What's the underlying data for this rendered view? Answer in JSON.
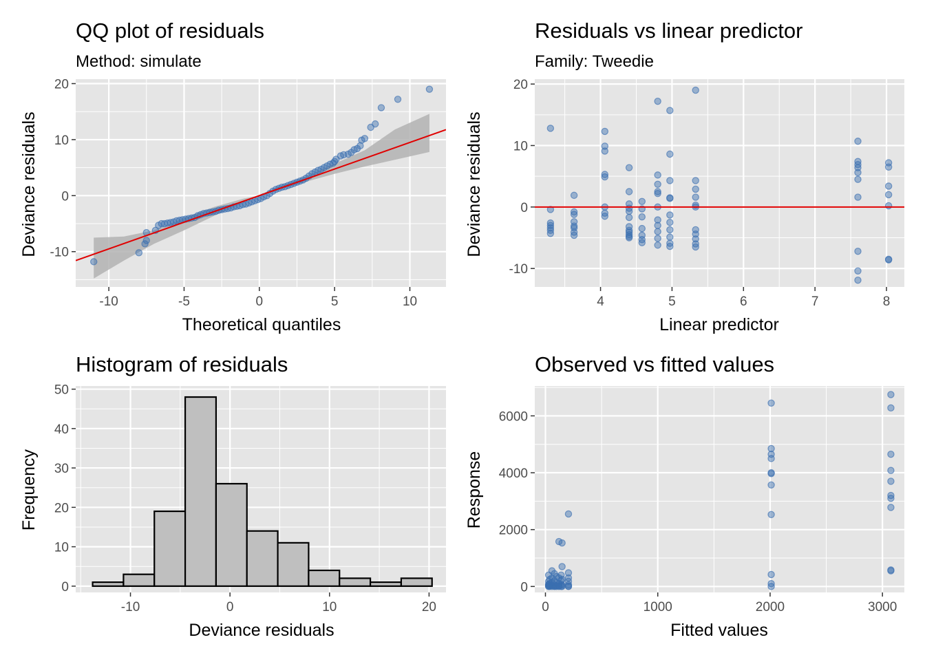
{
  "panels": {
    "qq": {
      "title": "QQ plot of residuals",
      "subtitle": "Method: simulate",
      "xlabel": "Theoretical quantiles",
      "ylabel": "Deviance residuals"
    },
    "rvl": {
      "title": "Residuals vs linear predictor",
      "subtitle": "Family: Tweedie",
      "xlabel": "Linear predictor",
      "ylabel": "Deviance residuals"
    },
    "hist": {
      "title": "Histogram of residuals",
      "xlabel": "Deviance residuals",
      "ylabel": "Frequency"
    },
    "ovf": {
      "title": "Observed vs fitted values",
      "xlabel": "Fitted values",
      "ylabel": "Response"
    }
  },
  "colors": {
    "panel_background": "#e5e5e5",
    "grid": "#ffffff",
    "point": "#3a6fb0",
    "reference_line": "#e00000",
    "ribbon": "#b3b3b3",
    "bar_fill": "#bfbfbf",
    "bar_outline": "#000000"
  },
  "chart_data": [
    {
      "id": "qq",
      "type": "scatter",
      "title": "QQ plot of residuals",
      "subtitle": "Method: simulate",
      "xlabel": "Theoretical quantiles",
      "ylabel": "Deviance residuals",
      "xlim": [
        -12.2,
        12.4
      ],
      "ylim": [
        -16.3,
        20.8
      ],
      "xticks": [
        -10,
        -5,
        0,
        5,
        10
      ],
      "xtick_labels": [
        "-10",
        "-5",
        "0",
        "5",
        "10"
      ],
      "yticks": [
        -10,
        0,
        10,
        20
      ],
      "ytick_labels": [
        "-10",
        "0",
        "10",
        "20"
      ],
      "grid": true,
      "reference_line": {
        "intercept": 0.0,
        "slope": 0.95
      },
      "band_x": [
        -11.0,
        -9.0,
        -7.0,
        -5.0,
        -3.0,
        -1.0,
        0.0,
        1.0,
        3.0,
        5.0,
        7.0,
        9.0,
        11.3
      ],
      "band_lower": [
        -14.8,
        -11.6,
        -8.6,
        -6.2,
        -3.6,
        -1.2,
        0.0,
        0.9,
        2.4,
        3.9,
        5.2,
        6.4,
        7.8
      ],
      "band_upper": [
        -7.5,
        -7.3,
        -6.2,
        -4.0,
        -2.0,
        -0.5,
        0.0,
        1.3,
        3.3,
        5.7,
        8.1,
        11.8,
        14.6
      ],
      "points": [
        [
          -11.0,
          -11.8
        ],
        [
          -8.0,
          -10.2
        ],
        [
          -7.6,
          -8.6
        ],
        [
          -7.5,
          -8.0
        ],
        [
          -7.5,
          -6.6
        ],
        [
          -6.9,
          -6.2
        ],
        [
          -6.7,
          -5.3
        ],
        [
          -6.5,
          -5.0
        ],
        [
          -6.3,
          -5.0
        ],
        [
          -6.1,
          -4.9
        ],
        [
          -5.9,
          -4.8
        ],
        [
          -5.7,
          -4.7
        ],
        [
          -5.5,
          -4.5
        ],
        [
          -5.3,
          -4.4
        ],
        [
          -5.1,
          -4.3
        ],
        [
          -4.9,
          -4.2
        ],
        [
          -4.7,
          -4.1
        ],
        [
          -4.5,
          -4.0
        ],
        [
          -4.3,
          -3.9
        ],
        [
          -4.1,
          -3.6
        ],
        [
          -3.9,
          -3.4
        ],
        [
          -3.7,
          -3.2
        ],
        [
          -3.5,
          -3.1
        ],
        [
          -3.3,
          -3.0
        ],
        [
          -3.1,
          -2.9
        ],
        [
          -2.9,
          -2.8
        ],
        [
          -2.7,
          -2.6
        ],
        [
          -2.5,
          -2.5
        ],
        [
          -2.3,
          -2.4
        ],
        [
          -2.1,
          -2.3
        ],
        [
          -1.9,
          -2.2
        ],
        [
          -1.7,
          -2.0
        ],
        [
          -1.5,
          -1.9
        ],
        [
          -1.3,
          -1.8
        ],
        [
          -1.1,
          -1.6
        ],
        [
          -0.9,
          -1.5
        ],
        [
          -0.7,
          -1.3
        ],
        [
          -0.5,
          -1.1
        ],
        [
          -0.3,
          -0.9
        ],
        [
          -0.1,
          -0.7
        ],
        [
          0.1,
          -0.5
        ],
        [
          0.3,
          -0.2
        ],
        [
          0.5,
          0.0
        ],
        [
          0.7,
          0.4
        ],
        [
          0.9,
          0.8
        ],
        [
          1.1,
          1.1
        ],
        [
          1.3,
          1.3
        ],
        [
          1.5,
          1.5
        ],
        [
          1.7,
          1.6
        ],
        [
          1.9,
          1.8
        ],
        [
          2.1,
          2.0
        ],
        [
          2.3,
          2.2
        ],
        [
          2.5,
          2.4
        ],
        [
          2.7,
          2.6
        ],
        [
          2.9,
          2.8
        ],
        [
          3.1,
          3.1
        ],
        [
          3.3,
          3.5
        ],
        [
          3.5,
          3.9
        ],
        [
          3.7,
          4.2
        ],
        [
          3.9,
          4.5
        ],
        [
          4.1,
          4.7
        ],
        [
          4.3,
          5.0
        ],
        [
          4.5,
          5.3
        ],
        [
          4.7,
          5.6
        ],
        [
          4.9,
          5.8
        ],
        [
          5.0,
          6.1
        ],
        [
          5.1,
          6.5
        ],
        [
          5.4,
          7.1
        ],
        [
          5.6,
          7.3
        ],
        [
          5.9,
          7.4
        ],
        [
          6.1,
          7.7
        ],
        [
          6.3,
          8.2
        ],
        [
          6.5,
          8.4
        ],
        [
          6.7,
          8.9
        ],
        [
          6.8,
          9.9
        ],
        [
          7.0,
          10.2
        ],
        [
          7.4,
          12.2
        ],
        [
          7.7,
          12.8
        ],
        [
          8.1,
          15.7
        ],
        [
          9.2,
          17.2
        ],
        [
          11.3,
          19.0
        ]
      ]
    },
    {
      "id": "rvl",
      "type": "scatter",
      "title": "Residuals vs linear predictor",
      "subtitle": "Family: Tweedie",
      "xlabel": "Linear predictor",
      "ylabel": "Deviance residuals",
      "xlim": [
        3.08,
        8.25
      ],
      "ylim": [
        -13.0,
        20.8
      ],
      "xticks": [
        4,
        5,
        6,
        7,
        8
      ],
      "xtick_labels": [
        "4",
        "5",
        "6",
        "7",
        "8"
      ],
      "yticks": [
        -10,
        0,
        10,
        20
      ],
      "ytick_labels": [
        "-10",
        "0",
        "10",
        "20"
      ],
      "grid": true,
      "reference_line": {
        "y": 0
      },
      "points": [
        [
          3.3,
          12.8
        ],
        [
          3.3,
          -0.4
        ],
        [
          3.3,
          -2.6
        ],
        [
          3.3,
          -3.0
        ],
        [
          3.3,
          -3.4
        ],
        [
          3.3,
          -3.8
        ],
        [
          3.3,
          -4.3
        ],
        [
          3.63,
          1.9
        ],
        [
          3.63,
          -0.8
        ],
        [
          3.63,
          -1.2
        ],
        [
          3.63,
          -2.4
        ],
        [
          3.63,
          -3.1
        ],
        [
          3.63,
          -3.4
        ],
        [
          3.63,
          -4.1
        ],
        [
          3.63,
          -4.6
        ],
        [
          4.06,
          12.3
        ],
        [
          4.06,
          9.9
        ],
        [
          4.06,
          9.1
        ],
        [
          4.06,
          5.3
        ],
        [
          4.06,
          4.9
        ],
        [
          4.06,
          0.0
        ],
        [
          4.06,
          -1.0
        ],
        [
          4.06,
          -1.5
        ],
        [
          4.4,
          6.4
        ],
        [
          4.4,
          2.5
        ],
        [
          4.4,
          0.5
        ],
        [
          4.4,
          -0.2
        ],
        [
          4.4,
          -0.7
        ],
        [
          4.4,
          -1.7
        ],
        [
          4.4,
          -3.2
        ],
        [
          4.4,
          -3.8
        ],
        [
          4.4,
          -4.1
        ],
        [
          4.4,
          -4.5
        ],
        [
          4.4,
          -4.8
        ],
        [
          4.4,
          -5.0
        ],
        [
          4.58,
          0.9
        ],
        [
          4.58,
          -0.3
        ],
        [
          4.58,
          -1.6
        ],
        [
          4.58,
          -3.5
        ],
        [
          4.58,
          -4.6
        ],
        [
          4.58,
          -5.3
        ],
        [
          4.58,
          -5.8
        ],
        [
          4.8,
          17.2
        ],
        [
          4.8,
          5.2
        ],
        [
          4.8,
          3.7
        ],
        [
          4.8,
          2.5
        ],
        [
          4.8,
          2.2
        ],
        [
          4.8,
          0.0
        ],
        [
          4.8,
          -2.1
        ],
        [
          4.8,
          -3.0
        ],
        [
          4.8,
          -4.0
        ],
        [
          4.8,
          -5.1
        ],
        [
          4.8,
          -6.2
        ],
        [
          4.97,
          15.7
        ],
        [
          4.97,
          8.6
        ],
        [
          4.97,
          4.3
        ],
        [
          4.97,
          1.5
        ],
        [
          4.97,
          1.4
        ],
        [
          4.97,
          -1.3
        ],
        [
          4.97,
          -2.5
        ],
        [
          4.97,
          -3.7
        ],
        [
          4.97,
          -4.9
        ],
        [
          4.97,
          -5.9
        ],
        [
          4.97,
          -6.4
        ],
        [
          5.33,
          19.0
        ],
        [
          5.33,
          4.3
        ],
        [
          5.33,
          2.9
        ],
        [
          5.33,
          1.6
        ],
        [
          5.33,
          0.3
        ],
        [
          5.33,
          0.0
        ],
        [
          5.33,
          -3.7
        ],
        [
          5.33,
          -4.4
        ],
        [
          5.33,
          -5.2
        ],
        [
          5.33,
          -6.0
        ],
        [
          5.33,
          -6.5
        ],
        [
          7.6,
          10.7
        ],
        [
          7.6,
          7.4
        ],
        [
          7.6,
          6.9
        ],
        [
          7.6,
          6.4
        ],
        [
          7.6,
          5.6
        ],
        [
          7.6,
          4.5
        ],
        [
          7.6,
          1.6
        ],
        [
          7.6,
          -7.2
        ],
        [
          7.6,
          -10.4
        ],
        [
          7.6,
          -11.9
        ],
        [
          8.03,
          7.2
        ],
        [
          8.03,
          6.5
        ],
        [
          8.03,
          3.4
        ],
        [
          8.03,
          2.0
        ],
        [
          8.03,
          0.2
        ],
        [
          8.03,
          -8.5
        ],
        [
          8.03,
          -8.6
        ]
      ]
    },
    {
      "id": "hist",
      "type": "bar",
      "title": "Histogram of residuals",
      "xlabel": "Deviance residuals",
      "ylabel": "Frequency",
      "bin_edges": [
        -13.8,
        -10.7,
        -7.6,
        -4.5,
        -1.4,
        1.7,
        4.8,
        7.9,
        11.0,
        14.1,
        17.2,
        20.3
      ],
      "values": [
        1,
        3,
        19,
        48,
        26,
        14,
        11,
        4,
        2,
        1,
        2
      ],
      "xlim": [
        -15.5,
        21.7
      ],
      "ylim": [
        -1.6,
        50.8
      ],
      "xticks": [
        -10,
        0,
        10,
        20
      ],
      "xtick_labels": [
        "-10",
        "0",
        "10",
        "20"
      ],
      "yticks": [
        0,
        10,
        20,
        30,
        40,
        50
      ],
      "ytick_labels": [
        "0",
        "10",
        "20",
        "30",
        "40",
        "50"
      ],
      "grid": true
    },
    {
      "id": "ovf",
      "type": "scatter",
      "title": "Observed vs fitted values",
      "xlabel": "Fitted values",
      "ylabel": "Response",
      "xlim": [
        -95,
        3195
      ],
      "ylim": [
        -210,
        7050
      ],
      "xticks": [
        0,
        1000,
        2000,
        3000
      ],
      "xtick_labels": [
        "0",
        "1000",
        "2000",
        "3000"
      ],
      "yticks": [
        0,
        2000,
        4000,
        6000
      ],
      "ytick_labels": [
        "0",
        "2000",
        "4000",
        "6000"
      ],
      "grid": true,
      "points": [
        [
          28,
          400
        ],
        [
          28,
          180
        ],
        [
          28,
          80
        ],
        [
          28,
          20
        ],
        [
          28,
          0
        ],
        [
          28,
          50
        ],
        [
          38,
          250
        ],
        [
          38,
          100
        ],
        [
          38,
          30
        ],
        [
          38,
          0
        ],
        [
          58,
          550
        ],
        [
          58,
          300
        ],
        [
          58,
          150
        ],
        [
          58,
          40
        ],
        [
          58,
          0
        ],
        [
          80,
          450
        ],
        [
          80,
          200
        ],
        [
          80,
          60
        ],
        [
          80,
          10
        ],
        [
          80,
          0
        ],
        [
          98,
          350
        ],
        [
          98,
          120
        ],
        [
          98,
          30
        ],
        [
          98,
          0
        ],
        [
          120,
          1580
        ],
        [
          120,
          300
        ],
        [
          120,
          100
        ],
        [
          120,
          20
        ],
        [
          120,
          0
        ],
        [
          140,
          400
        ],
        [
          140,
          200
        ],
        [
          140,
          70
        ],
        [
          140,
          0
        ],
        [
          148,
          1530
        ],
        [
          148,
          700
        ],
        [
          148,
          250
        ],
        [
          148,
          50
        ],
        [
          148,
          0
        ],
        [
          205,
          2550
        ],
        [
          205,
          480
        ],
        [
          205,
          300
        ],
        [
          205,
          180
        ],
        [
          205,
          60
        ],
        [
          205,
          10
        ],
        [
          205,
          0
        ],
        [
          2010,
          6450
        ],
        [
          2010,
          4850
        ],
        [
          2010,
          4650
        ],
        [
          2010,
          4500
        ],
        [
          2010,
          4000
        ],
        [
          2010,
          3970
        ],
        [
          2010,
          3570
        ],
        [
          2010,
          2530
        ],
        [
          2010,
          420
        ],
        [
          2010,
          100
        ],
        [
          2010,
          0
        ],
        [
          3075,
          6750
        ],
        [
          3075,
          6280
        ],
        [
          3075,
          4650
        ],
        [
          3075,
          4080
        ],
        [
          3075,
          3700
        ],
        [
          3075,
          3200
        ],
        [
          3075,
          3100
        ],
        [
          3075,
          2780
        ],
        [
          3075,
          580
        ],
        [
          3075,
          550
        ]
      ]
    }
  ]
}
